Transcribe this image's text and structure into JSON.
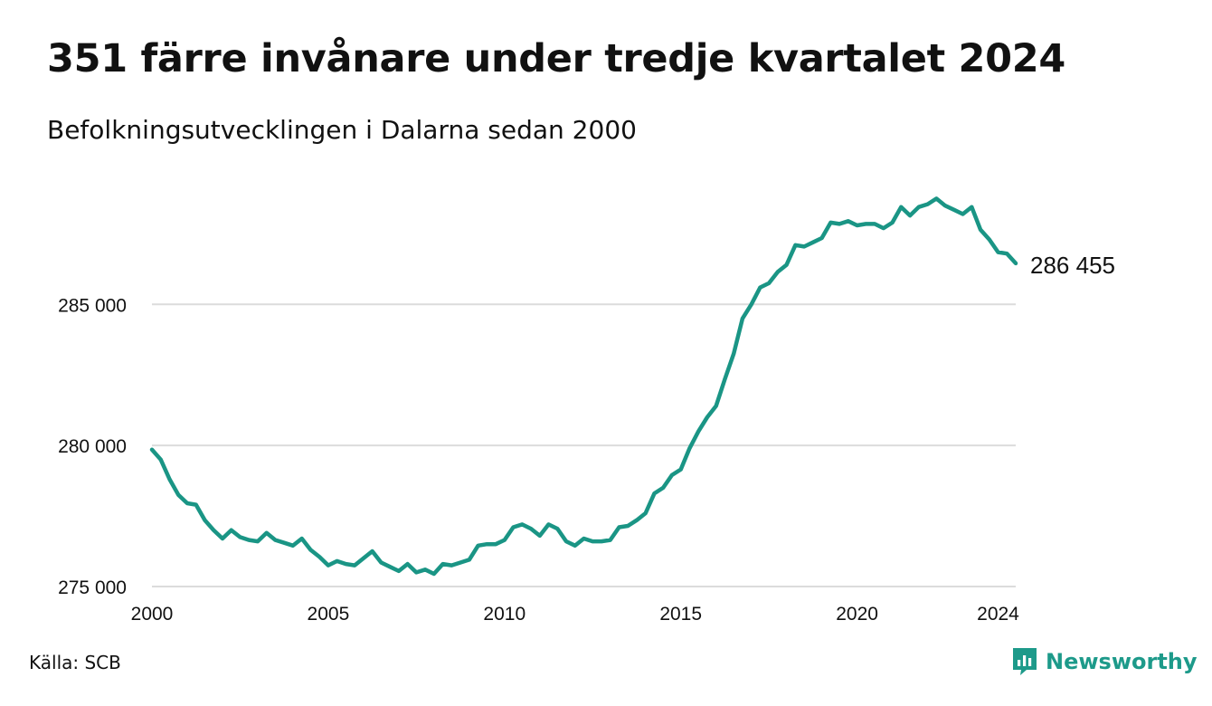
{
  "title": "351 färre invånare under tredje kvartalet 2024",
  "subtitle": "Befolkningsutvecklingen i Dalarna sedan 2000",
  "source": "Källa: SCB",
  "brand": {
    "name": "Newsworthy",
    "icon": "newsworthy-logo-icon",
    "color": "#1d9a8a"
  },
  "chart_data": {
    "type": "line",
    "title": "351 färre invånare under tredje kvartalet 2024",
    "subtitle": "Befolkningsutvecklingen i Dalarna sedan 2000",
    "xlabel": "",
    "ylabel": "",
    "xlim": [
      2000,
      2024.5
    ],
    "ylim": [
      275000,
      289500
    ],
    "x_ticks": [
      2000,
      2005,
      2010,
      2015,
      2020,
      2024
    ],
    "x_tick_labels": [
      "2000",
      "2005",
      "2010",
      "2015",
      "2020",
      "2024"
    ],
    "y_ticks": [
      275000,
      280000,
      285000
    ],
    "y_tick_labels": [
      "275 000",
      "280 000",
      "285 000"
    ],
    "grid": "horizontal",
    "line_color": "#1a9585",
    "end_label": "286 455",
    "series": [
      {
        "x": [
          2000.0,
          2000.25,
          2000.5,
          2000.75,
          2001.0,
          2001.25,
          2001.5,
          2001.75,
          2002.0,
          2002.25,
          2002.5,
          2002.75,
          2003.0,
          2003.25,
          2003.5,
          2003.75,
          2004.0,
          2004.25,
          2004.5,
          2004.75,
          2005.0,
          2005.25,
          2005.5,
          2005.75,
          2006.0,
          2006.25,
          2006.5,
          2006.75,
          2007.0,
          2007.25,
          2007.5,
          2007.75,
          2008.0,
          2008.25,
          2008.5,
          2008.75,
          2009.0,
          2009.25,
          2009.5,
          2009.75,
          2010.0,
          2010.25,
          2010.5,
          2010.75,
          2011.0,
          2011.25,
          2011.5,
          2011.75,
          2012.0,
          2012.25,
          2012.5,
          2012.75,
          2013.0,
          2013.25,
          2013.5,
          2013.75,
          2014.0,
          2014.25,
          2014.5,
          2014.75,
          2015.0,
          2015.25,
          2015.5,
          2015.75,
          2016.0,
          2016.25,
          2016.5,
          2016.75,
          2017.0,
          2017.25,
          2017.5,
          2017.75,
          2018.0,
          2018.25,
          2018.5,
          2018.75,
          2019.0,
          2019.25,
          2019.5,
          2019.75,
          2020.0,
          2020.25,
          2020.5,
          2020.75,
          2021.0,
          2021.25,
          2021.5,
          2021.75,
          2022.0,
          2022.25,
          2022.5,
          2022.75,
          2023.0,
          2023.25,
          2023.5,
          2023.75,
          2024.0,
          2024.25,
          2024.5
        ],
        "y": [
          279850,
          279500,
          278800,
          278250,
          277950,
          277900,
          277350,
          277000,
          276700,
          277000,
          276750,
          276650,
          276600,
          276900,
          276650,
          276550,
          276450,
          276700,
          276300,
          276050,
          275750,
          275900,
          275800,
          275750,
          276000,
          276250,
          275850,
          275700,
          275550,
          275800,
          275500,
          275600,
          275450,
          275800,
          275750,
          275850,
          275950,
          276450,
          276500,
          276500,
          276650,
          277100,
          277200,
          277050,
          276800,
          277200,
          277050,
          276600,
          276450,
          276700,
          276600,
          276600,
          276650,
          277100,
          277150,
          277350,
          277600,
          278300,
          278500,
          278950,
          279150,
          279900,
          280500,
          281000,
          281400,
          282350,
          283250,
          284500,
          285000,
          285600,
          285750,
          286150,
          286400,
          287100,
          287050,
          287200,
          287350,
          287900,
          287850,
          287950,
          287800,
          287850,
          287850,
          287700,
          287900,
          288450,
          288150,
          288450,
          288550,
          288750,
          288500,
          288350,
          288200,
          288450,
          287650,
          287300,
          286850,
          286800,
          286455
        ]
      }
    ]
  }
}
